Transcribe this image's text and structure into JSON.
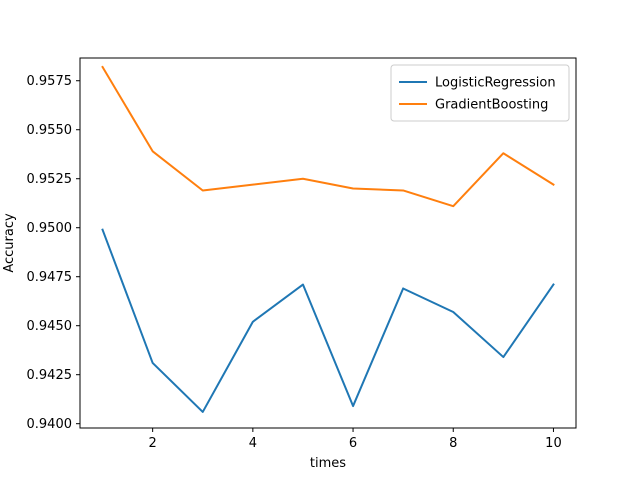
{
  "chart_data": {
    "type": "line",
    "xlabel": "times",
    "ylabel": "Accuracy",
    "xlim": [
      0.55,
      10.45
    ],
    "ylim": [
      0.93978,
      0.95866
    ],
    "x": [
      1,
      2,
      3,
      4,
      5,
      6,
      7,
      8,
      9,
      10
    ],
    "x_ticks": [
      2,
      4,
      6,
      8,
      10
    ],
    "x_tick_labels": [
      "2",
      "4",
      "6",
      "8",
      "10"
    ],
    "y_ticks": [
      0.94,
      0.9425,
      0.945,
      0.9475,
      0.95,
      0.9525,
      0.955,
      0.9575
    ],
    "y_tick_labels": [
      "0.9400",
      "0.9425",
      "0.9450",
      "0.9475",
      "0.9500",
      "0.9525",
      "0.9550",
      "0.9575"
    ],
    "grid": false,
    "legend_position": "top-right",
    "series": [
      {
        "name": "LogisticRegression",
        "color": "#1f77b4",
        "values": [
          0.9499,
          0.9431,
          0.9406,
          0.9452,
          0.9471,
          0.9409,
          0.9469,
          0.9457,
          0.9434,
          0.9471
        ]
      },
      {
        "name": "GradientBoosting",
        "color": "#ff7f0e",
        "values": [
          0.9582,
          0.9539,
          0.9519,
          0.9522,
          0.9525,
          0.952,
          0.9519,
          0.9511,
          0.9538,
          0.9522
        ]
      }
    ]
  }
}
